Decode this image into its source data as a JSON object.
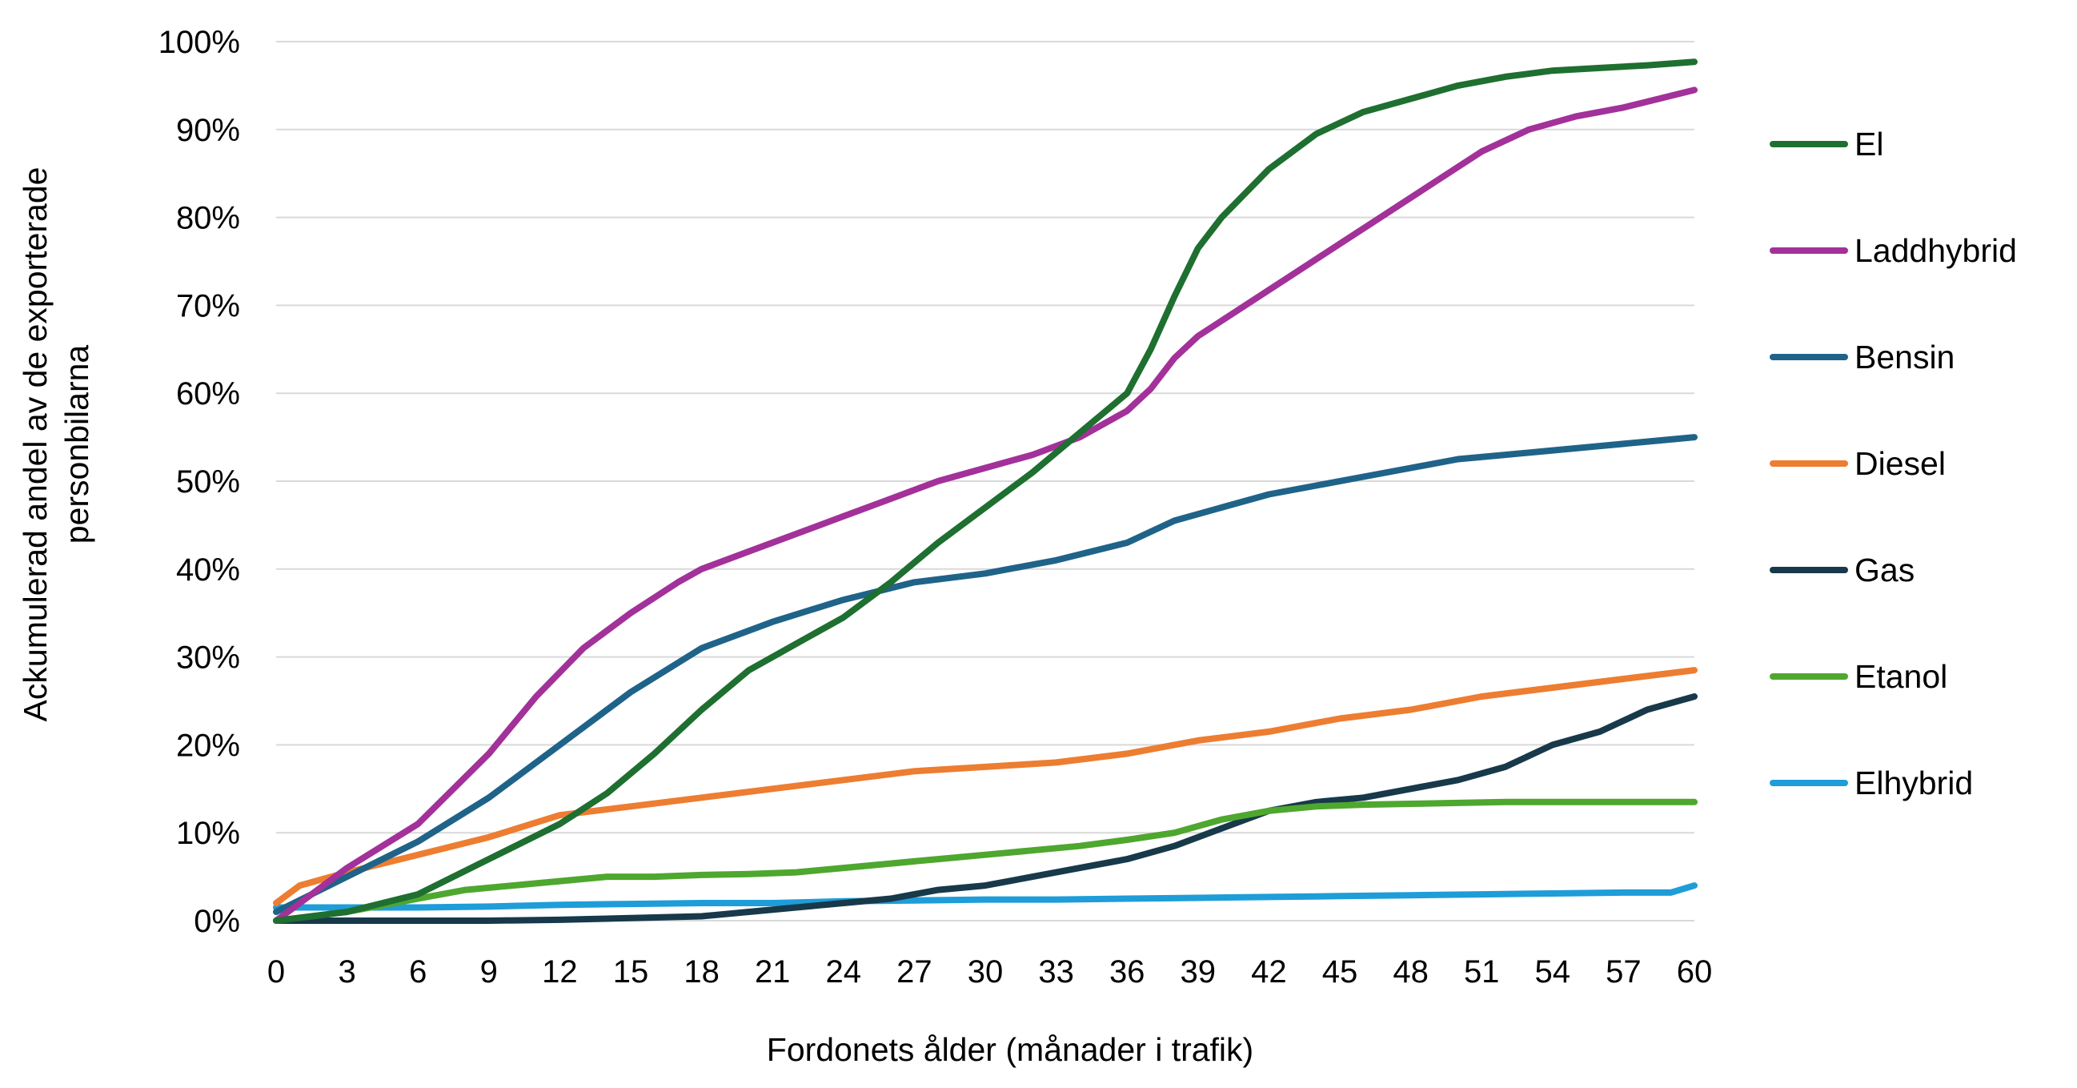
{
  "chart_data": {
    "type": "line",
    "title": "",
    "xlabel": "Fordonets ålder (månader i trafik)",
    "ylabel_lines": [
      "Ackumulerad andel av de exporterade",
      "personbilarna"
    ],
    "xlim": [
      0,
      60
    ],
    "ylim": [
      0,
      100
    ],
    "x_ticks": [
      0,
      3,
      6,
      9,
      12,
      15,
      18,
      21,
      24,
      27,
      30,
      33,
      36,
      39,
      42,
      45,
      48,
      51,
      54,
      57,
      60
    ],
    "y_ticks": [
      0,
      10,
      20,
      30,
      40,
      50,
      60,
      70,
      80,
      90,
      100
    ],
    "x_tick_labels": [
      "0",
      "3",
      "6",
      "9",
      "12",
      "15",
      "18",
      "21",
      "24",
      "27",
      "30",
      "33",
      "36",
      "39",
      "42",
      "45",
      "48",
      "51",
      "54",
      "57",
      "60"
    ],
    "y_tick_labels": [
      "0%",
      "10%",
      "20%",
      "30%",
      "40%",
      "50%",
      "60%",
      "70%",
      "80%",
      "90%",
      "100%"
    ],
    "y_unit": "%",
    "grid": "horizontal",
    "legend_position": "right",
    "series": [
      {
        "name": "El",
        "color": "#1e6f30",
        "x": [
          0,
          3,
          6,
          9,
          12,
          14,
          16,
          18,
          20,
          22,
          24,
          26,
          28,
          30,
          32,
          34,
          36,
          37,
          38,
          39,
          40,
          42,
          44,
          46,
          48,
          50,
          52,
          54,
          56,
          58,
          60
        ],
        "y": [
          0,
          1,
          3,
          7,
          11,
          14.5,
          19,
          24,
          28.5,
          31.5,
          34.5,
          38.5,
          43,
          47,
          51,
          55.5,
          60,
          65,
          71,
          76.5,
          80,
          85.5,
          89.5,
          92,
          93.5,
          95,
          96,
          96.7,
          97,
          97.3,
          97.7
        ]
      },
      {
        "name": "Laddhybrid",
        "color": "#a3319a",
        "x": [
          0,
          3,
          6,
          9,
          11,
          13,
          15,
          17,
          18,
          20,
          22,
          24,
          26,
          28,
          30,
          32,
          34,
          36,
          37,
          38,
          39,
          41,
          43,
          45,
          47,
          49,
          51,
          53,
          55,
          57,
          60
        ],
        "y": [
          0,
          6,
          11,
          19,
          25.5,
          31,
          35,
          38.5,
          40,
          42,
          44,
          46,
          48,
          50,
          51.5,
          53,
          55,
          58,
          60.5,
          64,
          66.5,
          70,
          73.5,
          77,
          80.5,
          84,
          87.5,
          90,
          91.5,
          92.5,
          94.5
        ]
      },
      {
        "name": "Bensin",
        "color": "#1f6389",
        "x": [
          0,
          3,
          6,
          9,
          12,
          15,
          18,
          21,
          24,
          27,
          30,
          33,
          36,
          38,
          40,
          42,
          44,
          46,
          48,
          50,
          52,
          54,
          56,
          58,
          60
        ],
        "y": [
          1,
          5,
          9,
          14,
          20,
          26,
          31,
          34,
          36.5,
          38.5,
          39.5,
          41,
          43,
          45.5,
          47,
          48.5,
          49.5,
          50.5,
          51.5,
          52.5,
          53,
          53.5,
          54,
          54.5,
          55
        ]
      },
      {
        "name": "Diesel",
        "color": "#ed7d31",
        "x": [
          0,
          1,
          3,
          6,
          9,
          12,
          15,
          18,
          21,
          24,
          27,
          30,
          33,
          36,
          39,
          42,
          45,
          48,
          51,
          54,
          57,
          60
        ],
        "y": [
          2,
          4,
          5.5,
          7.5,
          9.5,
          12,
          13,
          14,
          15,
          16,
          17,
          17.5,
          18,
          19,
          20.5,
          21.5,
          23,
          24,
          25.5,
          26.5,
          27.5,
          28.5
        ]
      },
      {
        "name": "Gas",
        "color": "#17394a",
        "x": [
          0,
          3,
          6,
          9,
          12,
          15,
          18,
          20,
          22,
          24,
          26,
          28,
          30,
          32,
          34,
          36,
          38,
          40,
          42,
          44,
          46,
          48,
          50,
          52,
          54,
          56,
          58,
          60
        ],
        "y": [
          0,
          0,
          0,
          0,
          0.1,
          0.3,
          0.5,
          1,
          1.5,
          2,
          2.5,
          3.5,
          4,
          5,
          6,
          7,
          8.5,
          10.5,
          12.5,
          13.5,
          14,
          15,
          16,
          17.5,
          20,
          21.5,
          24,
          25.5
        ]
      },
      {
        "name": "Etanol",
        "color": "#4ea72e",
        "x": [
          0,
          3,
          6,
          8,
          10,
          12,
          14,
          16,
          18,
          20,
          22,
          24,
          26,
          28,
          30,
          32,
          34,
          36,
          38,
          40,
          42,
          44,
          46,
          48,
          50,
          52,
          54,
          56,
          58,
          60
        ],
        "y": [
          0,
          1,
          2.5,
          3.5,
          4,
          4.5,
          5,
          5,
          5.2,
          5.3,
          5.5,
          6,
          6.5,
          7,
          7.5,
          8,
          8.5,
          9.2,
          10,
          11.5,
          12.5,
          13,
          13.2,
          13.3,
          13.4,
          13.5,
          13.5,
          13.5,
          13.5,
          13.5
        ]
      },
      {
        "name": "Elhybrid",
        "color": "#1e9dd8",
        "x": [
          0,
          3,
          6,
          9,
          12,
          15,
          18,
          21,
          24,
          27,
          30,
          33,
          36,
          39,
          42,
          45,
          48,
          51,
          54,
          57,
          59,
          60
        ],
        "y": [
          1.5,
          1.5,
          1.5,
          1.6,
          1.8,
          1.9,
          2,
          2,
          2.2,
          2.3,
          2.4,
          2.4,
          2.5,
          2.6,
          2.7,
          2.8,
          2.9,
          3,
          3.1,
          3.2,
          3.2,
          4
        ]
      }
    ]
  }
}
